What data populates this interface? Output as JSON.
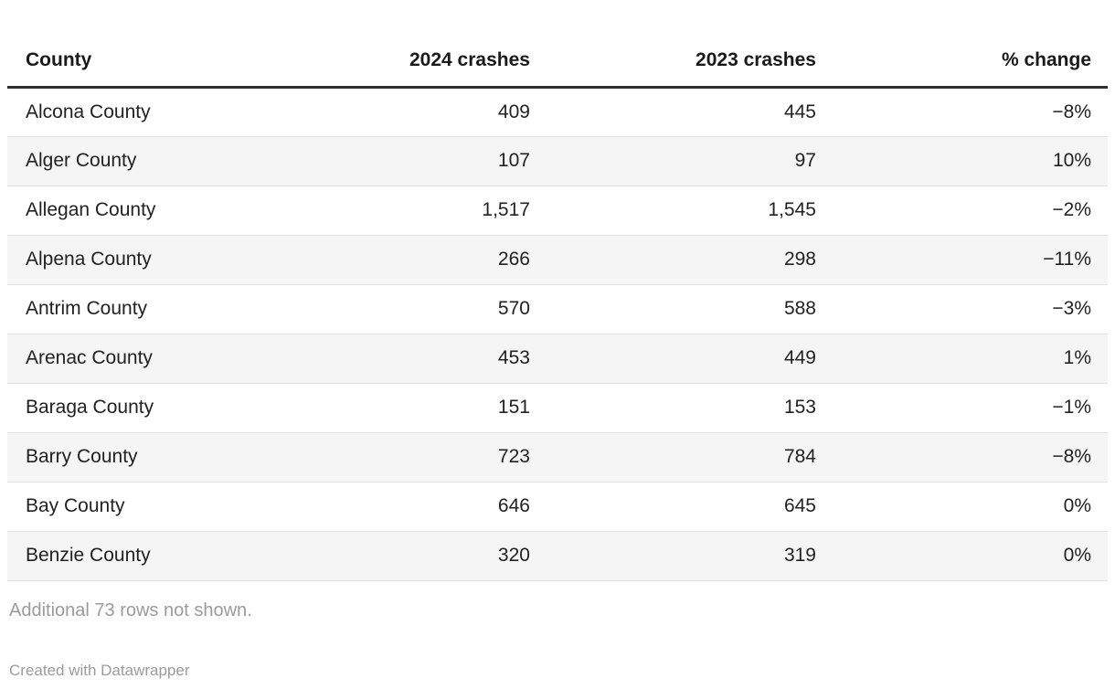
{
  "table": {
    "columns": [
      {
        "label": "County",
        "align": "left"
      },
      {
        "label": "2024 crashes",
        "align": "right"
      },
      {
        "label": "2023 crashes",
        "align": "right"
      },
      {
        "label": "% change",
        "align": "right"
      }
    ],
    "rows": [
      {
        "county": "Alcona County",
        "crashes_2024": "409",
        "crashes_2023": "445",
        "pct_change": "−8%"
      },
      {
        "county": "Alger County",
        "crashes_2024": "107",
        "crashes_2023": "97",
        "pct_change": "10%"
      },
      {
        "county": "Allegan County",
        "crashes_2024": "1,517",
        "crashes_2023": "1,545",
        "pct_change": "−2%"
      },
      {
        "county": "Alpena County",
        "crashes_2024": "266",
        "crashes_2023": "298",
        "pct_change": "−11%"
      },
      {
        "county": "Antrim County",
        "crashes_2024": "570",
        "crashes_2023": "588",
        "pct_change": "−3%"
      },
      {
        "county": "Arenac County",
        "crashes_2024": "453",
        "crashes_2023": "449",
        "pct_change": "1%"
      },
      {
        "county": "Baraga County",
        "crashes_2024": "151",
        "crashes_2023": "153",
        "pct_change": "−1%"
      },
      {
        "county": "Barry County",
        "crashes_2024": "723",
        "crashes_2023": "784",
        "pct_change": "−8%"
      },
      {
        "county": "Bay County",
        "crashes_2024": "646",
        "crashes_2023": "645",
        "pct_change": "0%"
      },
      {
        "county": "Benzie County",
        "crashes_2024": "320",
        "crashes_2023": "319",
        "pct_change": "0%"
      }
    ]
  },
  "footer": {
    "note": "Additional 73 rows not shown.",
    "attribution": "Created with Datawrapper"
  },
  "colors": {
    "header_rule": "#2e2e2e",
    "row_stripe": "#f5f5f5",
    "row_border": "#e0e0e0",
    "text": "#222222",
    "muted_text": "#9b9b9b"
  }
}
